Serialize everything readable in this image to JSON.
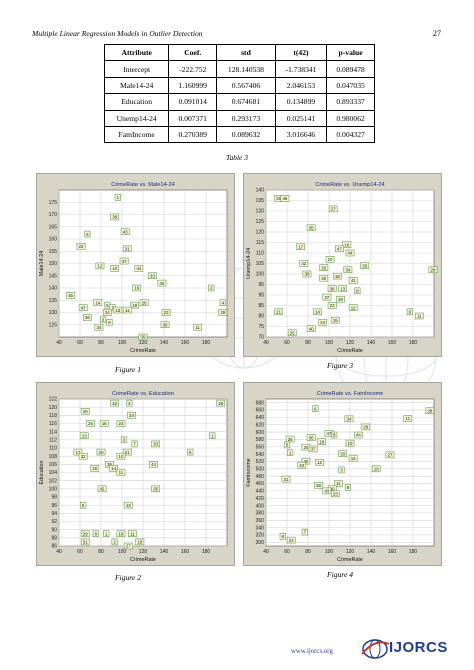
{
  "header": {
    "left": "Multiple Linear Regression Models in Outlier Detection",
    "page": "27"
  },
  "table": {
    "columns": [
      "Attribute",
      "Coef.",
      "std",
      "t(42)",
      "p-value"
    ],
    "rows": [
      [
        "Intercept",
        "-222.752",
        "128.140538",
        "-1.738341",
        "0.089478"
      ],
      [
        "Male14-24",
        "1.160999",
        "0.567406",
        "2.046153",
        "0.047035"
      ],
      [
        "Education",
        "0.091014",
        "0.674681",
        "0.134899",
        "0.893337"
      ],
      [
        "Unemp14-24",
        "0.007371",
        "0.293173",
        "0.025141",
        "0.980062"
      ],
      [
        "FamIncome",
        "0.270389",
        "0.089632",
        "3.016646",
        "0.004327"
      ]
    ],
    "caption": "Table 3"
  },
  "figures": [
    {
      "caption": "Figure 1",
      "chart_data": {
        "type": "scatter",
        "title": "CrimeRate vs. Male14-24",
        "xlabel": "CrimeRate",
        "ylabel": "Male14-24",
        "xlim": [
          40,
          200
        ],
        "ylim": [
          120,
          180
        ],
        "xticks": [
          40,
          60,
          80,
          100,
          120,
          140,
          160,
          180
        ],
        "yticks": [
          125,
          130,
          135,
          140,
          145,
          150,
          155,
          160,
          165,
          170,
          175
        ],
        "grid": true,
        "points": [
          {
            "x": 96,
            "y": 177,
            "label": "1"
          },
          {
            "x": 93,
            "y": 169,
            "label": "38"
          },
          {
            "x": 103,
            "y": 163,
            "label": "43"
          },
          {
            "x": 67,
            "y": 162,
            "label": "8"
          },
          {
            "x": 61,
            "y": 157,
            "label": "22"
          },
          {
            "x": 105,
            "y": 156,
            "label": "31"
          },
          {
            "x": 102,
            "y": 151,
            "label": "37"
          },
          {
            "x": 79,
            "y": 149,
            "label": "12"
          },
          {
            "x": 93,
            "y": 148,
            "label": "10"
          },
          {
            "x": 116,
            "y": 148,
            "label": "44"
          },
          {
            "x": 129,
            "y": 145,
            "label": "33"
          },
          {
            "x": 138,
            "y": 142,
            "label": "40"
          },
          {
            "x": 114,
            "y": 140,
            "label": "16"
          },
          {
            "x": 185,
            "y": 140,
            "label": "2"
          },
          {
            "x": 51,
            "y": 137,
            "label": "45"
          },
          {
            "x": 77,
            "y": 134,
            "label": "14"
          },
          {
            "x": 86,
            "y": 133,
            "label": "5"
          },
          {
            "x": 91,
            "y": 132,
            "label": "7"
          },
          {
            "x": 112,
            "y": 133,
            "label": "18"
          },
          {
            "x": 121,
            "y": 134,
            "label": "20"
          },
          {
            "x": 196,
            "y": 134,
            "label": "4"
          },
          {
            "x": 63,
            "y": 132,
            "label": "47"
          },
          {
            "x": 86,
            "y": 130,
            "label": "24"
          },
          {
            "x": 96,
            "y": 131,
            "label": "13"
          },
          {
            "x": 105,
            "y": 131,
            "label": "11"
          },
          {
            "x": 142,
            "y": 130,
            "label": "23"
          },
          {
            "x": 196,
            "y": 130,
            "label": "29"
          },
          {
            "x": 67,
            "y": 128,
            "label": "36"
          },
          {
            "x": 82,
            "y": 127,
            "label": "3"
          },
          {
            "x": 88,
            "y": 126,
            "label": "9"
          },
          {
            "x": 78,
            "y": 124,
            "label": "34"
          },
          {
            "x": 141,
            "y": 125,
            "label": "30"
          },
          {
            "x": 172,
            "y": 124,
            "label": "11"
          },
          {
            "x": 120,
            "y": 120,
            "label": "39"
          }
        ]
      }
    },
    {
      "caption": "Figure 3",
      "chart_data": {
        "type": "scatter",
        "title": "CrimeRate vs. Unemp14-24",
        "xlabel": "CrimeRate",
        "ylabel": "Unemp14-24",
        "xlim": [
          40,
          200
        ],
        "ylim": [
          70,
          140
        ],
        "xticks": [
          40,
          60,
          80,
          100,
          120,
          140,
          160,
          180
        ],
        "yticks": [
          70,
          75,
          80,
          85,
          90,
          95,
          100,
          105,
          110,
          115,
          120,
          125,
          130,
          135,
          140
        ],
        "grid": true,
        "points": [
          {
            "x": 52,
            "y": 136,
            "label": "31"
          },
          {
            "x": 58,
            "y": 136,
            "label": "46"
          },
          {
            "x": 104,
            "y": 131,
            "label": "27"
          },
          {
            "x": 83,
            "y": 122,
            "label": "35"
          },
          {
            "x": 117,
            "y": 114,
            "label": "16"
          },
          {
            "x": 73,
            "y": 113,
            "label": "17"
          },
          {
            "x": 110,
            "y": 112,
            "label": "47"
          },
          {
            "x": 120,
            "y": 110,
            "label": "44"
          },
          {
            "x": 101,
            "y": 107,
            "label": "10"
          },
          {
            "x": 76,
            "y": 105,
            "label": "42"
          },
          {
            "x": 95,
            "y": 103,
            "label": "32"
          },
          {
            "x": 118,
            "y": 102,
            "label": "34"
          },
          {
            "x": 134,
            "y": 104,
            "label": "33"
          },
          {
            "x": 79,
            "y": 100,
            "label": "38"
          },
          {
            "x": 95,
            "y": 98,
            "label": "30"
          },
          {
            "x": 108,
            "y": 99,
            "label": "18"
          },
          {
            "x": 123,
            "y": 97,
            "label": "41"
          },
          {
            "x": 199,
            "y": 102,
            "label": "29"
          },
          {
            "x": 103,
            "y": 93,
            "label": "36"
          },
          {
            "x": 113,
            "y": 93,
            "label": "13"
          },
          {
            "x": 127,
            "y": 92,
            "label": "9"
          },
          {
            "x": 98,
            "y": 89,
            "label": "37"
          },
          {
            "x": 111,
            "y": 88,
            "label": "26"
          },
          {
            "x": 103,
            "y": 85,
            "label": "23"
          },
          {
            "x": 123,
            "y": 84,
            "label": "12"
          },
          {
            "x": 52,
            "y": 82,
            "label": "21"
          },
          {
            "x": 89,
            "y": 82,
            "label": "14"
          },
          {
            "x": 177,
            "y": 82,
            "label": "6"
          },
          {
            "x": 186,
            "y": 80,
            "label": "11"
          },
          {
            "x": 106,
            "y": 78,
            "label": "15"
          },
          {
            "x": 94,
            "y": 77,
            "label": "24"
          },
          {
            "x": 83,
            "y": 74,
            "label": "40"
          },
          {
            "x": 65,
            "y": 72,
            "label": "25"
          }
        ]
      }
    },
    {
      "caption": "Figure 2",
      "chart_data": {
        "type": "scatter",
        "title": "CrimeRate vs. Education",
        "xlabel": "CrimeRate",
        "ylabel": "Education",
        "xlim": [
          40,
          200
        ],
        "ylim": [
          86,
          122
        ],
        "xticks": [
          40,
          60,
          80,
          100,
          120,
          140,
          160,
          180
        ],
        "yticks": [
          86,
          88,
          90,
          92,
          94,
          96,
          98,
          100,
          102,
          104,
          106,
          108,
          110,
          112,
          114,
          116,
          118,
          120,
          122
        ],
        "grid": true,
        "points": [
          {
            "x": 93,
            "y": 121,
            "label": "42"
          },
          {
            "x": 107,
            "y": 121,
            "label": "4"
          },
          {
            "x": 194,
            "y": 121,
            "label": "28"
          },
          {
            "x": 65,
            "y": 119,
            "label": "40"
          },
          {
            "x": 109,
            "y": 118,
            "label": "34"
          },
          {
            "x": 70,
            "y": 116,
            "label": "25"
          },
          {
            "x": 83,
            "y": 116,
            "label": "16"
          },
          {
            "x": 99,
            "y": 116,
            "label": "24"
          },
          {
            "x": 64,
            "y": 113,
            "label": "13"
          },
          {
            "x": 102,
            "y": 112,
            "label": "3"
          },
          {
            "x": 112,
            "y": 111,
            "label": "7"
          },
          {
            "x": 132,
            "y": 111,
            "label": "33"
          },
          {
            "x": 186,
            "y": 113,
            "label": "1"
          },
          {
            "x": 58,
            "y": 109,
            "label": "17"
          },
          {
            "x": 80,
            "y": 109,
            "label": "20"
          },
          {
            "x": 105,
            "y": 109,
            "label": "21"
          },
          {
            "x": 63,
            "y": 108,
            "label": "32"
          },
          {
            "x": 99,
            "y": 108,
            "label": "10"
          },
          {
            "x": 165,
            "y": 109,
            "label": "6"
          },
          {
            "x": 88,
            "y": 106,
            "label": "39"
          },
          {
            "x": 130,
            "y": 106,
            "label": "44"
          },
          {
            "x": 74,
            "y": 105,
            "label": "26"
          },
          {
            "x": 92,
            "y": 105,
            "label": "14"
          },
          {
            "x": 99,
            "y": 104,
            "label": "11"
          },
          {
            "x": 132,
            "y": 100,
            "label": "35"
          },
          {
            "x": 81,
            "y": 100,
            "label": "42"
          },
          {
            "x": 63,
            "y": 96,
            "label": "5"
          },
          {
            "x": 106,
            "y": 96,
            "label": "13"
          },
          {
            "x": 65,
            "y": 89,
            "label": "29"
          },
          {
            "x": 75,
            "y": 89,
            "label": "8"
          },
          {
            "x": 85,
            "y": 89,
            "label": "1"
          },
          {
            "x": 99,
            "y": 89,
            "label": "18"
          },
          {
            "x": 110,
            "y": 89,
            "label": "11"
          },
          {
            "x": 65,
            "y": 87,
            "label": "31"
          },
          {
            "x": 93,
            "y": 87,
            "label": "2"
          },
          {
            "x": 117,
            "y": 87,
            "label": "19"
          },
          {
            "x": 106,
            "y": 86,
            "label": "27"
          }
        ]
      }
    },
    {
      "caption": "Figure 4",
      "chart_data": {
        "type": "scatter",
        "title": "CrimeRate vs. FamIncome",
        "xlabel": "CrimeRate",
        "ylabel": "FamIncome",
        "xlim": [
          40,
          200
        ],
        "ylim": [
          290,
          690
        ],
        "xticks": [
          40,
          60,
          80,
          100,
          120,
          140,
          160,
          180
        ],
        "yticks": [
          300,
          320,
          340,
          360,
          380,
          400,
          420,
          440,
          460,
          480,
          500,
          520,
          540,
          560,
          580,
          600,
          620,
          640,
          660,
          680
        ],
        "grid": true,
        "points": [
          {
            "x": 87,
            "y": 664,
            "label": "6"
          },
          {
            "x": 196,
            "y": 658,
            "label": "28"
          },
          {
            "x": 175,
            "y": 637,
            "label": "11"
          },
          {
            "x": 119,
            "y": 636,
            "label": "34"
          },
          {
            "x": 135,
            "y": 614,
            "label": "29"
          },
          {
            "x": 100,
            "y": 596,
            "label": "47"
          },
          {
            "x": 105,
            "y": 592,
            "label": "8"
          },
          {
            "x": 128,
            "y": 592,
            "label": "44"
          },
          {
            "x": 83,
            "y": 585,
            "label": "36"
          },
          {
            "x": 63,
            "y": 581,
            "label": "26"
          },
          {
            "x": 93,
            "y": 574,
            "label": "18"
          },
          {
            "x": 120,
            "y": 570,
            "label": "10"
          },
          {
            "x": 60,
            "y": 565,
            "label": "5"
          },
          {
            "x": 78,
            "y": 559,
            "label": "20"
          },
          {
            "x": 85,
            "y": 554,
            "label": "37"
          },
          {
            "x": 63,
            "y": 544,
            "label": "1"
          },
          {
            "x": 113,
            "y": 541,
            "label": "33"
          },
          {
            "x": 123,
            "y": 529,
            "label": "16"
          },
          {
            "x": 158,
            "y": 538,
            "label": "27"
          },
          {
            "x": 78,
            "y": 521,
            "label": "40"
          },
          {
            "x": 91,
            "y": 518,
            "label": "12"
          },
          {
            "x": 74,
            "y": 510,
            "label": "42"
          },
          {
            "x": 145,
            "y": 500,
            "label": "19"
          },
          {
            "x": 112,
            "y": 497,
            "label": "3"
          },
          {
            "x": 59,
            "y": 472,
            "label": "31"
          },
          {
            "x": 109,
            "y": 460,
            "label": "11"
          },
          {
            "x": 90,
            "y": 455,
            "label": "38"
          },
          {
            "x": 103,
            "y": 446,
            "label": "30"
          },
          {
            "x": 118,
            "y": 450,
            "label": "9"
          },
          {
            "x": 98,
            "y": 440,
            "label": "43"
          },
          {
            "x": 106,
            "y": 432,
            "label": "23"
          },
          {
            "x": 77,
            "y": 328,
            "label": "7"
          },
          {
            "x": 56,
            "y": 316,
            "label": "8"
          },
          {
            "x": 64,
            "y": 306,
            "label": "22"
          }
        ]
      }
    }
  ],
  "footer": {
    "url": "www.ijorcs.org",
    "logo": "IJORCS"
  }
}
